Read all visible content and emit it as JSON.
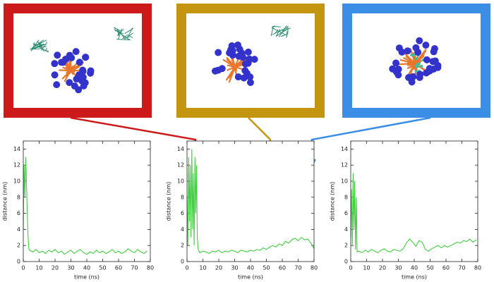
{
  "chart_data": [
    {
      "type": "line",
      "xlabel": "time (ns)",
      "ylabel": "distance (nm)",
      "xlim": [
        0,
        80
      ],
      "ylim": [
        0,
        15
      ],
      "xticks": [
        0,
        10,
        20,
        30,
        40,
        50,
        60,
        70,
        80
      ],
      "yticks": [
        0,
        2,
        4,
        6,
        8,
        10,
        12,
        14
      ],
      "x": [
        0,
        0.5,
        1,
        1.5,
        2,
        2.5,
        3,
        3.5,
        4,
        6,
        8,
        10,
        12,
        14,
        16,
        18,
        20,
        22,
        24,
        26,
        28,
        30,
        32,
        34,
        36,
        38,
        40,
        42,
        44,
        46,
        48,
        50,
        52,
        54,
        56,
        58,
        60,
        62,
        64,
        66,
        68,
        70,
        72,
        74,
        76,
        78
      ],
      "series": [
        {
          "color": "#44cc44",
          "values": [
            4,
            12,
            8,
            13,
            10,
            6,
            3,
            1.6,
            1.4,
            1.2,
            1.5,
            1.1,
            1.3,
            1.0,
            1.4,
            1.2,
            1.5,
            1.1,
            1.3,
            0.9,
            1.2,
            1.4,
            1.0,
            1.3,
            1.5,
            1.1,
            0.9,
            1.2,
            1.0,
            1.4,
            1.1,
            1.3,
            1.0,
            1.2,
            1.5,
            1.1,
            1.3,
            1.0,
            1.2,
            1.6,
            1.3,
            1.1,
            1.5,
            1.2,
            1.0,
            1.3
          ]
        }
      ]
    },
    {
      "type": "line",
      "xlabel": "time (ns)",
      "ylabel": "distance (nm)",
      "xlim": [
        0,
        80
      ],
      "ylim": [
        0,
        15
      ],
      "xticks": [
        0,
        10,
        20,
        30,
        40,
        50,
        60,
        70,
        80
      ],
      "yticks": [
        0,
        2,
        4,
        6,
        8,
        10,
        12,
        14
      ],
      "x": [
        0,
        0.5,
        1,
        1.5,
        2,
        2.5,
        3,
        3.5,
        4,
        4.5,
        5,
        5.5,
        6,
        6.5,
        7,
        8,
        10,
        12,
        14,
        16,
        18,
        20,
        22,
        24,
        26,
        28,
        30,
        32,
        34,
        36,
        38,
        40,
        42,
        44,
        46,
        48,
        50,
        52,
        54,
        56,
        58,
        60,
        62,
        64,
        66,
        68,
        70,
        72,
        74,
        76,
        78,
        80
      ],
      "series": [
        {
          "color": "#44cc44",
          "values": [
            8,
            2,
            13,
            5,
            12,
            3,
            14,
            4,
            11,
            2,
            13,
            6,
            12,
            3,
            1.5,
            1.1,
            1.3,
            1.2,
            1.0,
            1.3,
            1.2,
            1.4,
            1.1,
            1.3,
            1.2,
            1.4,
            1.3,
            1.1,
            1.4,
            1.3,
            1.2,
            1.4,
            1.3,
            1.5,
            1.4,
            1.7,
            1.5,
            1.8,
            2.0,
            1.8,
            2.2,
            2.0,
            2.5,
            2.3,
            2.7,
            2.9,
            2.6,
            3.0,
            2.7,
            2.8,
            2.3,
            1.6
          ]
        }
      ]
    },
    {
      "type": "line",
      "xlabel": "time (ns)",
      "ylabel": "distance (nm)",
      "xlim": [
        0,
        80
      ],
      "ylim": [
        0,
        15
      ],
      "xticks": [
        0,
        10,
        20,
        30,
        40,
        50,
        60,
        70,
        80
      ],
      "yticks": [
        0,
        2,
        4,
        6,
        8,
        10,
        12,
        14
      ],
      "x": [
        0,
        0.5,
        1,
        1.5,
        2,
        2.5,
        3,
        3.5,
        4,
        5,
        7,
        9,
        11,
        13,
        15,
        17,
        19,
        21,
        23,
        25,
        27,
        29,
        31,
        33,
        35,
        37,
        39,
        41,
        43,
        45,
        47,
        49,
        51,
        53,
        55,
        57,
        59,
        61,
        63,
        65,
        67,
        69,
        71,
        73,
        75,
        77,
        79
      ],
      "series": [
        {
          "color": "#44cc44",
          "values": [
            3,
            9,
            2,
            11,
            4,
            10,
            1.5,
            8,
            1.2,
            1.3,
            1.1,
            1.4,
            1.2,
            1.5,
            1.3,
            1.1,
            1.4,
            1.6,
            1.3,
            1.2,
            1.5,
            1.4,
            1.3,
            1.6,
            2.3,
            2.8,
            2.4,
            1.9,
            2.6,
            2.4,
            1.5,
            1.3,
            1.6,
            1.8,
            2.0,
            1.7,
            2.0,
            1.8,
            2.0,
            2.2,
            2.4,
            2.3,
            2.6,
            2.5,
            2.8,
            2.4,
            2.7
          ]
        }
      ]
    }
  ]
}
